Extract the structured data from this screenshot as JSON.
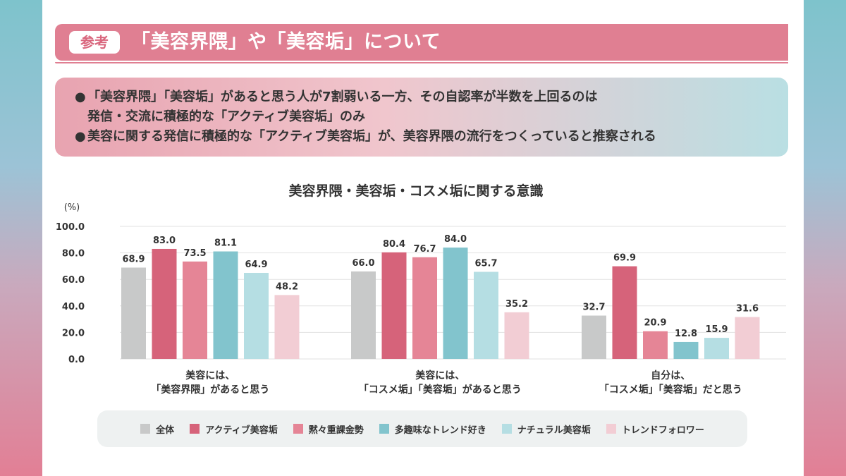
{
  "header": {
    "tag": "参考",
    "title": "「美容界隈」や「美容垢」について"
  },
  "summary": {
    "bullet": "●",
    "line1": "「美容界隈」「美容垢」があると思う人が7割弱いる一方、その自認率が半数を上回るのは",
    "line1_cont": "発信・交流に積極的な「アクティブ美容垢」のみ",
    "line2": "美容に関する発信に積極的な「アクティブ美容垢」が、美容界隈の流行をつくっていると推察される"
  },
  "colors": {
    "title_bar": "#e07f92",
    "series": [
      "#c8c9c9",
      "#d6637a",
      "#e58596",
      "#82c4cd",
      "#b5dee3",
      "#f2cdd4"
    ]
  },
  "chart_data": {
    "type": "bar",
    "title": "美容界隈・美容垢・コスメ垢に関する意識",
    "unit_label": "(%)",
    "ylim": [
      0,
      100
    ],
    "yticks": [
      "100.0",
      "80.0",
      "60.0",
      "40.0",
      "20.0",
      "0.0"
    ],
    "ytick_values": [
      100,
      80,
      60,
      40,
      20,
      0
    ],
    "grid": true,
    "legend_position": "bottom",
    "categories": [
      [
        "美容には、",
        "「美容界隈」があると思う"
      ],
      [
        "美容には、",
        "「コスメ垢」「美容垢」があると思う"
      ],
      [
        "自分は、",
        "「コスメ垢」「美容垢」だと思う"
      ]
    ],
    "series": [
      {
        "name": "全体",
        "values": [
          68.9,
          66.0,
          32.7
        ],
        "labels": [
          "68.9",
          "66.0",
          "32.7"
        ]
      },
      {
        "name": "アクティブ美容垢",
        "values": [
          83.0,
          80.4,
          69.9
        ],
        "labels": [
          "83.0",
          "80.4",
          "69.9"
        ]
      },
      {
        "name": "黙々重課金勢",
        "values": [
          73.5,
          76.7,
          20.9
        ],
        "labels": [
          "73.5",
          "76.7",
          "20.9"
        ]
      },
      {
        "name": "多趣味なトレンド好き",
        "values": [
          81.1,
          84.0,
          12.8
        ],
        "labels": [
          "81.1",
          "84.0",
          "12.8"
        ]
      },
      {
        "name": "ナチュラル美容垢",
        "values": [
          64.9,
          65.7,
          15.9
        ],
        "labels": [
          "64.9",
          "65.7",
          "15.9"
        ]
      },
      {
        "name": "トレンドフォロワー",
        "values": [
          48.2,
          35.2,
          31.6
        ],
        "labels": [
          "48.2",
          "35.2",
          "31.6"
        ]
      }
    ]
  }
}
